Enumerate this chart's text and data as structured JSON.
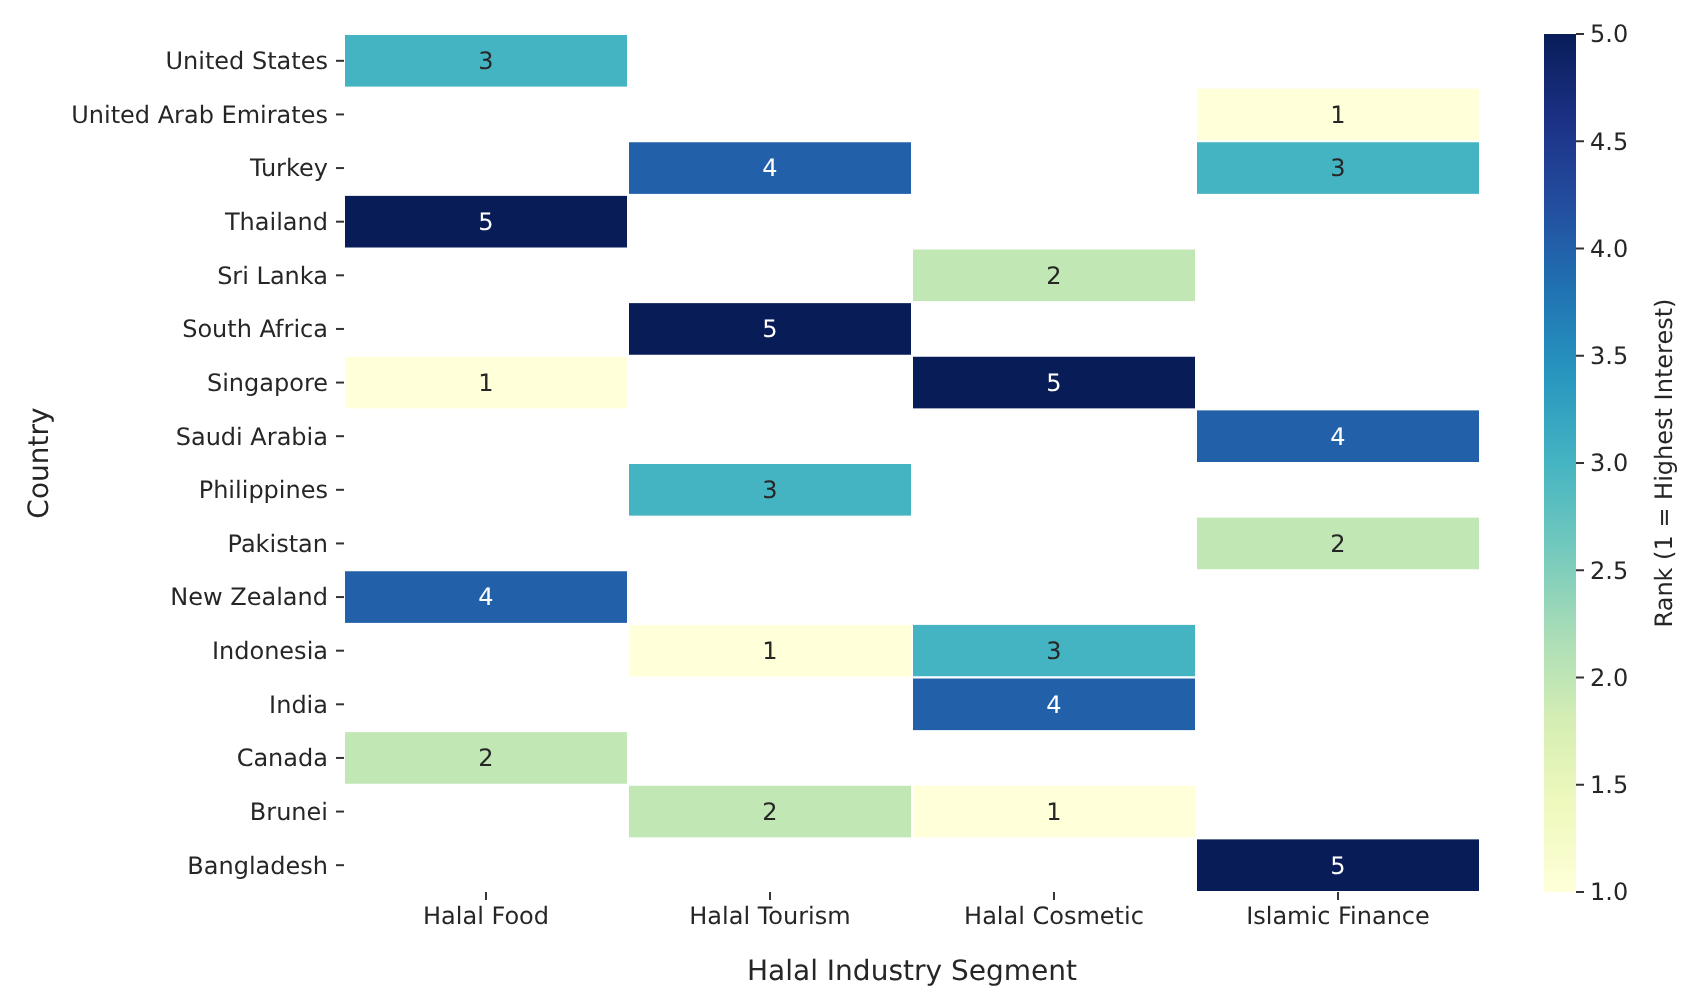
{
  "chart_data": {
    "type": "heatmap",
    "xlabel": "Halal Industry Segment",
    "ylabel": "Country",
    "clabel": "Rank (1 = Highest Interest)",
    "categories": [
      "Halal Food",
      "Halal Tourism",
      "Halal Cosmetic",
      "Islamic Finance"
    ],
    "y_categories": [
      "United States",
      "United Arab Emirates",
      "Turkey",
      "Thailand",
      "Sri Lanka",
      "South Africa",
      "Singapore",
      "Saudi Arabia",
      "Philippines",
      "Pakistan",
      "New Zealand",
      "Indonesia",
      "India",
      "Canada",
      "Brunei",
      "Bangladesh"
    ],
    "cells": [
      [
        3,
        null,
        null,
        null
      ],
      [
        null,
        null,
        null,
        1
      ],
      [
        null,
        4,
        null,
        3
      ],
      [
        5,
        null,
        null,
        null
      ],
      [
        null,
        null,
        2,
        null
      ],
      [
        null,
        5,
        null,
        null
      ],
      [
        1,
        null,
        5,
        null
      ],
      [
        null,
        null,
        null,
        4
      ],
      [
        null,
        3,
        null,
        null
      ],
      [
        null,
        null,
        null,
        2
      ],
      [
        4,
        null,
        null,
        null
      ],
      [
        null,
        1,
        3,
        null
      ],
      [
        null,
        null,
        4,
        null
      ],
      [
        2,
        null,
        null,
        null
      ],
      [
        null,
        2,
        1,
        null
      ],
      [
        null,
        null,
        null,
        5
      ]
    ],
    "data_labels": true,
    "clim": [
      1,
      5
    ],
    "cticks": [
      {
        "value": 1,
        "label": "1.0"
      },
      {
        "value": 1.5,
        "label": "1.5"
      },
      {
        "value": 2,
        "label": "2.0"
      },
      {
        "value": 2.5,
        "label": "2.5"
      },
      {
        "value": 3,
        "label": "3.0"
      },
      {
        "value": 3.5,
        "label": "3.5"
      },
      {
        "value": 4,
        "label": "4.0"
      },
      {
        "value": 4.5,
        "label": "4.5"
      },
      {
        "value": 5,
        "label": "5.0"
      }
    ]
  }
}
